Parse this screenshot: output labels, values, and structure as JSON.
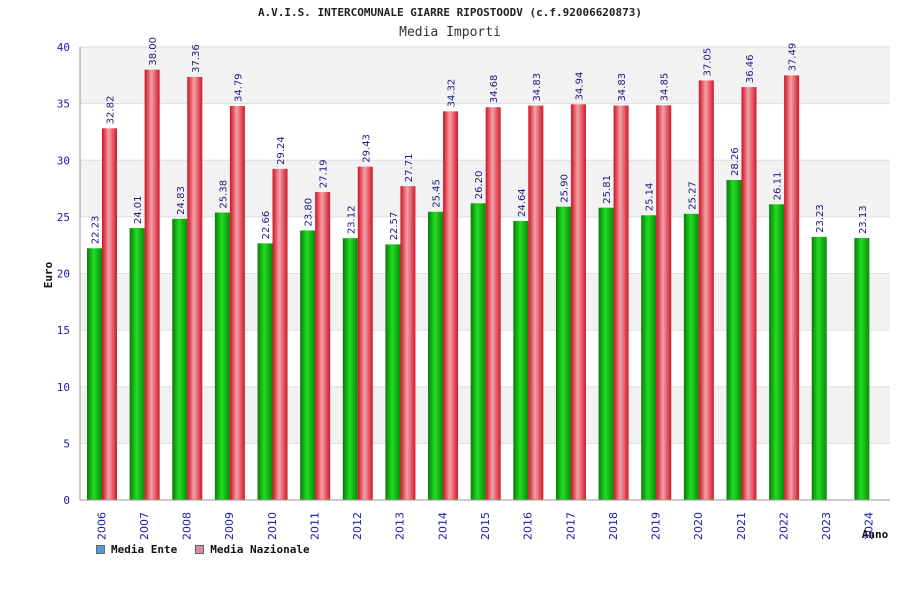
{
  "title": "A.V.I.S. INTERCOMUNALE GIARRE RIPOSTOODV (c.f.92006620873)",
  "chart_data": {
    "type": "bar",
    "title": "Media Importi",
    "xlabel": "Anno",
    "ylabel": "Euro",
    "ylim": [
      0,
      40
    ],
    "yticks": [
      0,
      5,
      10,
      15,
      20,
      25,
      30,
      35,
      40
    ],
    "categories": [
      "2006",
      "2007",
      "2008",
      "2009",
      "2010",
      "2011",
      "2012",
      "2013",
      "2014",
      "2015",
      "2016",
      "2017",
      "2018",
      "2019",
      "2020",
      "2021",
      "2022",
      "2023",
      "2024"
    ],
    "series": [
      {
        "name": "Media Ente",
        "color": "#11aa11",
        "labels": [
          "22.23",
          "24.01",
          "24.83",
          "25.38",
          "22.66",
          "23.80",
          "23.12",
          "22.57",
          "25.45",
          "26.20",
          "24.64",
          "25.90",
          "25.81",
          "25.14",
          "25.27",
          "28.26",
          "26.11",
          "23.23",
          "23.13"
        ],
        "values": [
          22.23,
          24.01,
          24.83,
          25.38,
          22.66,
          23.8,
          23.12,
          22.57,
          25.45,
          26.2,
          24.64,
          25.9,
          25.81,
          25.14,
          25.27,
          28.26,
          26.11,
          23.23,
          23.13
        ]
      },
      {
        "name": "Media Nazionale",
        "color": "#e83040",
        "labels": [
          "32.82",
          "38.00",
          "37.36",
          "34.79",
          "29.24",
          "27.19",
          "29.43",
          "27.71",
          "34.32",
          "34.68",
          "34.83",
          "34.94",
          "34.83",
          "34.85",
          "37.05",
          "36.46",
          "37.49",
          null,
          null
        ],
        "values": [
          32.82,
          38.0,
          37.36,
          34.79,
          29.24,
          27.19,
          29.43,
          27.71,
          34.32,
          34.68,
          34.83,
          34.94,
          34.83,
          34.85,
          37.05,
          36.46,
          37.49,
          null,
          null
        ]
      }
    ]
  },
  "legend": {
    "ente_label": "Media Ente",
    "ente_swatch": "#5599dd",
    "nazionale_label": "Media Nazionale",
    "nazionale_swatch": "#dd88aa"
  }
}
